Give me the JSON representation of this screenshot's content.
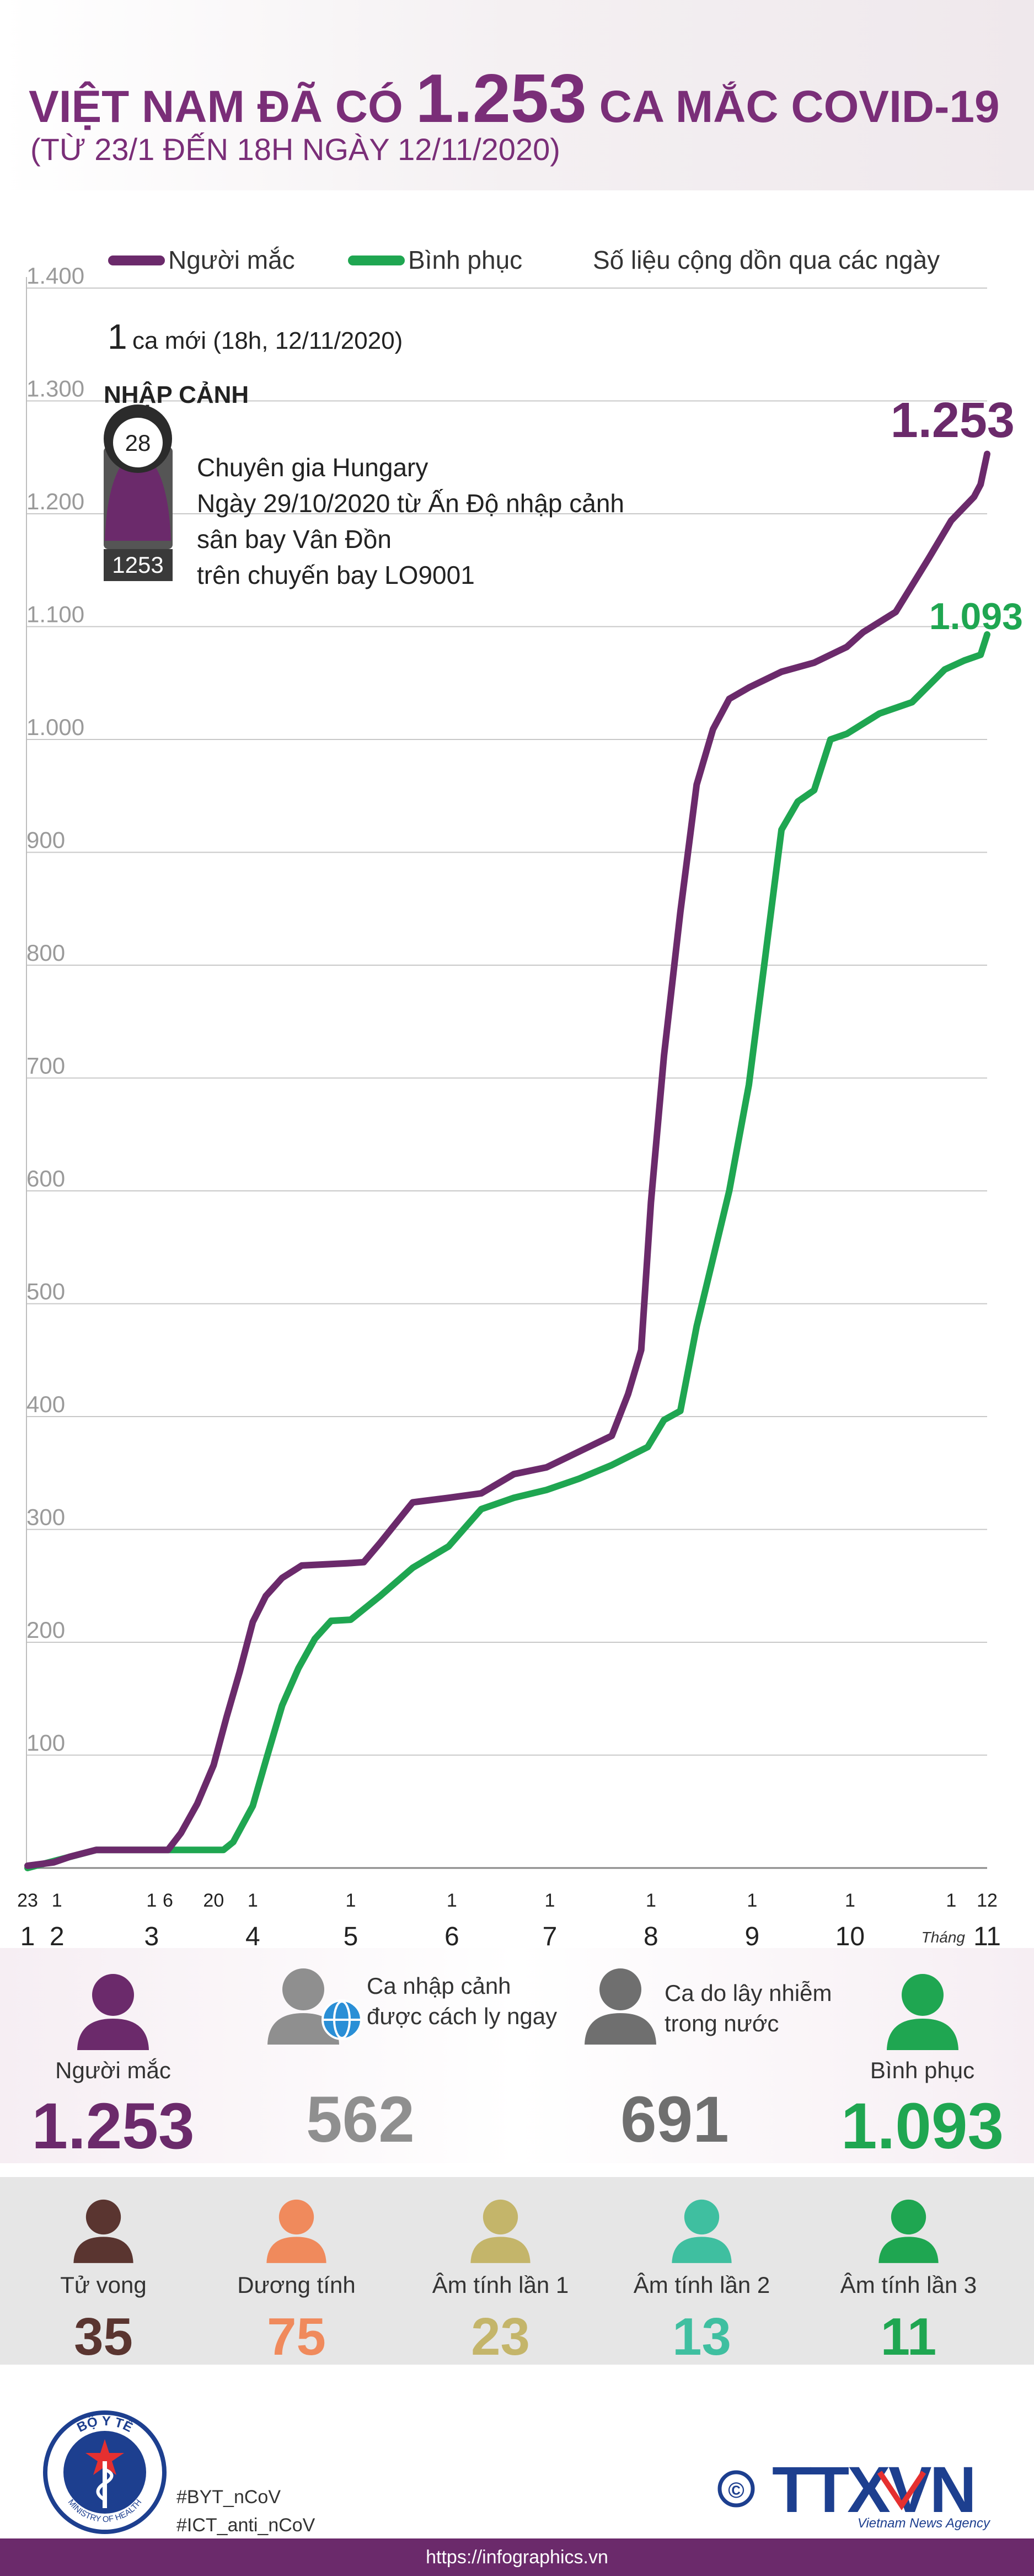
{
  "header": {
    "title_pre": "VIỆT NAM ĐÃ CÓ ",
    "title_num": "1.253",
    "title_post": " CA MẮC COVID-19",
    "subtitle": "(TỪ 23/1 ĐẾN 18H NGÀY 12/11/2020)"
  },
  "legend": {
    "infected": "Người mắc",
    "recovered": "Bình phục",
    "note": "Số liệu cộng dồn qua các ngày"
  },
  "colors": {
    "infected": "#6b2a6b",
    "recovered": "#1fa651",
    "imported": "#8f8f8f",
    "domestic": "#6f6f6f",
    "death": "#5a3530",
    "positive": "#f08a5c",
    "neg1": "#c4b56a",
    "neg2": "#3fbfa0",
    "neg3": "#1fa651"
  },
  "note": {
    "new_num": "1",
    "new_text": "ca mới (18h, 12/11/2020)",
    "section": "NHẬP CẢNH",
    "age": "28",
    "patient": "1253",
    "lines": [
      "Chuyên gia Hungary",
      "Ngày 29/10/2020 từ Ấn Độ nhập cảnh",
      "sân bay Vân Đồn",
      "trên chuyến bay LO9001"
    ]
  },
  "chart_data": {
    "type": "line",
    "ylim": [
      0,
      1400
    ],
    "yticks": [
      100,
      200,
      300,
      400,
      500,
      600,
      700,
      800,
      900,
      1000,
      1100,
      1200,
      1300,
      1400
    ],
    "ytick_labels": [
      "100",
      "200",
      "300",
      "400",
      "500",
      "600",
      "700",
      "800",
      "900",
      "1.000",
      "1.100",
      "1.200",
      "1.300",
      "1.400"
    ],
    "grid": true,
    "end_labels": {
      "infected": "1.253",
      "recovered": "1.093"
    },
    "day_ticks": [
      {
        "date": "2020-01-23",
        "label": "23"
      },
      {
        "date": "2020-02-01",
        "label": "1"
      },
      {
        "date": "2020-03-01",
        "label": "1"
      },
      {
        "date": "2020-03-06",
        "label": "6"
      },
      {
        "date": "2020-03-20",
        "label": "20"
      },
      {
        "date": "2020-04-01",
        "label": "1"
      },
      {
        "date": "2020-05-01",
        "label": "1"
      },
      {
        "date": "2020-06-01",
        "label": "1"
      },
      {
        "date": "2020-07-01",
        "label": "1"
      },
      {
        "date": "2020-08-01",
        "label": "1"
      },
      {
        "date": "2020-09-01",
        "label": "1"
      },
      {
        "date": "2020-10-01",
        "label": "1"
      },
      {
        "date": "2020-11-01",
        "label": "1"
      },
      {
        "date": "2020-11-12",
        "label": "12"
      }
    ],
    "month_ticks": [
      {
        "date": "2020-01-23",
        "label": "1"
      },
      {
        "date": "2020-02-01",
        "label": "2"
      },
      {
        "date": "2020-03-01",
        "label": "3"
      },
      {
        "date": "2020-04-01",
        "label": "4"
      },
      {
        "date": "2020-05-01",
        "label": "5"
      },
      {
        "date": "2020-06-01",
        "label": "6"
      },
      {
        "date": "2020-07-01",
        "label": "7"
      },
      {
        "date": "2020-08-01",
        "label": "8"
      },
      {
        "date": "2020-09-01",
        "label": "9"
      },
      {
        "date": "2020-10-01",
        "label": "10"
      },
      {
        "date": "2020-11-12",
        "label": "11"
      }
    ],
    "month_word": "Tháng",
    "series": [
      {
        "name": "Người mắc",
        "points": [
          [
            "2020-01-23",
            2
          ],
          [
            "2020-01-31",
            5
          ],
          [
            "2020-02-05",
            10
          ],
          [
            "2020-02-13",
            16
          ],
          [
            "2020-03-06",
            16
          ],
          [
            "2020-03-10",
            31
          ],
          [
            "2020-03-15",
            57
          ],
          [
            "2020-03-20",
            91
          ],
          [
            "2020-03-24",
            134
          ],
          [
            "2020-03-28",
            174
          ],
          [
            "2020-04-01",
            218
          ],
          [
            "2020-04-05",
            241
          ],
          [
            "2020-04-10",
            257
          ],
          [
            "2020-04-16",
            268
          ],
          [
            "2020-04-30",
            270
          ],
          [
            "2020-05-05",
            271
          ],
          [
            "2020-05-10",
            288
          ],
          [
            "2020-05-20",
            324
          ],
          [
            "2020-05-31",
            328
          ],
          [
            "2020-06-10",
            332
          ],
          [
            "2020-06-20",
            349
          ],
          [
            "2020-06-30",
            355
          ],
          [
            "2020-07-10",
            369
          ],
          [
            "2020-07-20",
            383
          ],
          [
            "2020-07-25",
            420
          ],
          [
            "2020-07-29",
            459
          ],
          [
            "2020-08-01",
            590
          ],
          [
            "2020-08-05",
            720
          ],
          [
            "2020-08-10",
            847
          ],
          [
            "2020-08-15",
            960
          ],
          [
            "2020-08-20",
            1009
          ],
          [
            "2020-08-25",
            1036
          ],
          [
            "2020-08-31",
            1046
          ],
          [
            "2020-09-10",
            1060
          ],
          [
            "2020-09-20",
            1068
          ],
          [
            "2020-09-30",
            1082
          ],
          [
            "2020-10-05",
            1095
          ],
          [
            "2020-10-15",
            1113
          ],
          [
            "2020-10-25",
            1160
          ],
          [
            "2020-11-01",
            1194
          ],
          [
            "2020-11-08",
            1215
          ],
          [
            "2020-11-10",
            1226
          ],
          [
            "2020-11-12",
            1253
          ]
        ]
      },
      {
        "name": "Bình phục",
        "points": [
          [
            "2020-01-23",
            0
          ],
          [
            "2020-02-13",
            16
          ],
          [
            "2020-03-23",
            16
          ],
          [
            "2020-03-26",
            23
          ],
          [
            "2020-04-01",
            55
          ],
          [
            "2020-04-05",
            95
          ],
          [
            "2020-04-10",
            144
          ],
          [
            "2020-04-15",
            177
          ],
          [
            "2020-04-20",
            203
          ],
          [
            "2020-04-25",
            219
          ],
          [
            "2020-05-01",
            220
          ],
          [
            "2020-05-10",
            241
          ],
          [
            "2020-05-20",
            266
          ],
          [
            "2020-05-31",
            285
          ],
          [
            "2020-06-10",
            318
          ],
          [
            "2020-06-20",
            328
          ],
          [
            "2020-06-30",
            335
          ],
          [
            "2020-07-10",
            345
          ],
          [
            "2020-07-20",
            357
          ],
          [
            "2020-07-31",
            373
          ],
          [
            "2020-08-05",
            397
          ],
          [
            "2020-08-10",
            405
          ],
          [
            "2020-08-15",
            480
          ],
          [
            "2020-08-20",
            540
          ],
          [
            "2020-08-25",
            600
          ],
          [
            "2020-08-31",
            694
          ],
          [
            "2020-09-05",
            807
          ],
          [
            "2020-09-10",
            920
          ],
          [
            "2020-09-15",
            945
          ],
          [
            "2020-09-20",
            955
          ],
          [
            "2020-09-25",
            1000
          ],
          [
            "2020-09-30",
            1005
          ],
          [
            "2020-10-10",
            1023
          ],
          [
            "2020-10-20",
            1033
          ],
          [
            "2020-10-30",
            1062
          ],
          [
            "2020-11-05",
            1070
          ],
          [
            "2020-11-10",
            1075
          ],
          [
            "2020-11-12",
            1093
          ]
        ]
      }
    ]
  },
  "summary": {
    "infected": {
      "label": "Người mắc",
      "value": "1.253"
    },
    "imported": {
      "label1": "Ca nhập cảnh",
      "label2": "được cách ly ngay",
      "value": "562"
    },
    "domestic": {
      "label1": "Ca do lây nhiễm",
      "label2": "trong nước",
      "value": "691"
    },
    "recovered": {
      "label": "Bình phục",
      "value": "1.093"
    }
  },
  "outcomes": [
    {
      "label": "Tử vong",
      "value": "35"
    },
    {
      "label": "Dương tính",
      "value": "75"
    },
    {
      "label": "Âm tính lần 1",
      "value": "23"
    },
    {
      "label": "Âm tính lần 2",
      "value": "13"
    },
    {
      "label": "Âm tính lần 3",
      "value": "11"
    }
  ],
  "footer": {
    "seal_top": "BỘ Y TẾ",
    "seal_bottom": "MINISTRY OF HEALTH",
    "tag1": "#BYT_nCoV",
    "tag2": "#ICT_anti_nCoV",
    "agency": "TTXVN",
    "agency_sub": "Vietnam News Agency",
    "url": "https://infographics.vn"
  }
}
